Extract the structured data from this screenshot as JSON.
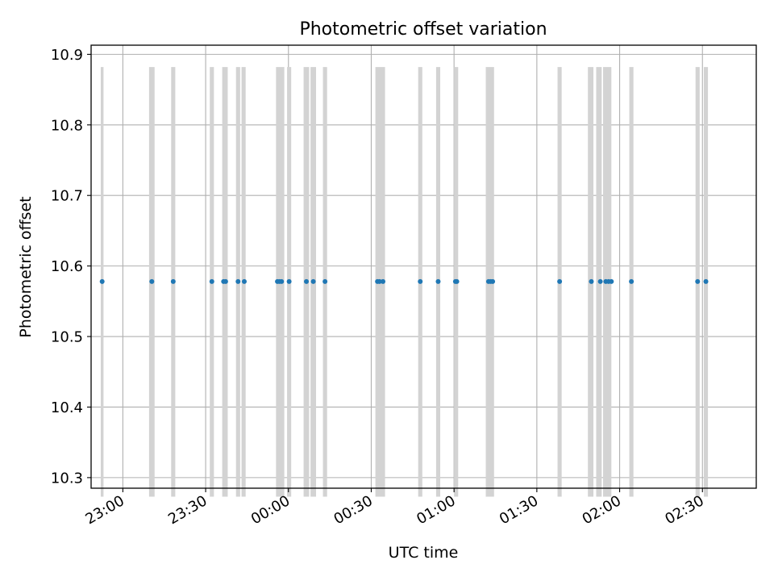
{
  "chart_data": {
    "type": "scatter",
    "title": "Photometric offset variation",
    "xlabel": "UTC time",
    "ylabel": "Photometric offset",
    "ylim": [
      10.285,
      10.913
    ],
    "y_ticks": [
      10.3,
      10.4,
      10.5,
      10.6,
      10.7,
      10.8,
      10.9
    ],
    "xlim": [
      "2023-01-01T22:48:30",
      "2023-01-02T02:49:30"
    ],
    "x_ticks": [
      {
        "t": "2023-01-01T23:00:00",
        "label": "23:00"
      },
      {
        "t": "2023-01-01T23:30:00",
        "label": "23:30"
      },
      {
        "t": "2023-01-02T00:00:00",
        "label": "00:00"
      },
      {
        "t": "2023-01-02T00:30:00",
        "label": "00:30"
      },
      {
        "t": "2023-01-02T01:00:00",
        "label": "01:00"
      },
      {
        "t": "2023-01-02T01:30:00",
        "label": "01:30"
      },
      {
        "t": "2023-01-02T02:00:00",
        "label": "02:00"
      },
      {
        "t": "2023-01-02T02:30:00",
        "label": "02:30"
      }
    ],
    "grid": true,
    "point_color": "#1f77b4",
    "band_color": "#d3d3d3",
    "band_range": [
      10.273,
      10.882
    ],
    "bands": [
      {
        "start": "2023-01-01T22:52:00",
        "end": "2023-01-01T22:53:00"
      },
      {
        "start": "2023-01-01T23:09:30",
        "end": "2023-01-01T23:11:30"
      },
      {
        "start": "2023-01-01T23:17:30",
        "end": "2023-01-01T23:19:00"
      },
      {
        "start": "2023-01-01T23:31:30",
        "end": "2023-01-01T23:33:00"
      },
      {
        "start": "2023-01-01T23:36:00",
        "end": "2023-01-01T23:38:00"
      },
      {
        "start": "2023-01-01T23:41:00",
        "end": "2023-01-01T23:42:30"
      },
      {
        "start": "2023-01-01T23:43:00",
        "end": "2023-01-01T23:44:30"
      },
      {
        "start": "2023-01-01T23:55:30",
        "end": "2023-01-01T23:58:30"
      },
      {
        "start": "2023-01-01T23:59:30",
        "end": "2023-01-02T00:01:00"
      },
      {
        "start": "2023-01-02T00:05:30",
        "end": "2023-01-02T00:07:30"
      },
      {
        "start": "2023-01-02T00:08:00",
        "end": "2023-01-02T00:10:00"
      },
      {
        "start": "2023-01-02T00:12:30",
        "end": "2023-01-02T00:14:00"
      },
      {
        "start": "2023-01-02T00:31:30",
        "end": "2023-01-02T00:35:00"
      },
      {
        "start": "2023-01-02T00:47:00",
        "end": "2023-01-02T00:48:30"
      },
      {
        "start": "2023-01-02T00:53:30",
        "end": "2023-01-02T00:55:00"
      },
      {
        "start": "2023-01-02T01:00:00",
        "end": "2023-01-02T01:01:30"
      },
      {
        "start": "2023-01-02T01:11:30",
        "end": "2023-01-02T01:14:30"
      },
      {
        "start": "2023-01-02T01:37:30",
        "end": "2023-01-02T01:39:00"
      },
      {
        "start": "2023-01-02T01:48:30",
        "end": "2023-01-02T01:50:30"
      },
      {
        "start": "2023-01-02T01:51:30",
        "end": "2023-01-02T01:53:30"
      },
      {
        "start": "2023-01-02T01:54:00",
        "end": "2023-01-02T01:57:00"
      },
      {
        "start": "2023-01-02T02:03:30",
        "end": "2023-01-02T02:05:00"
      },
      {
        "start": "2023-01-02T02:27:30",
        "end": "2023-01-02T02:29:00"
      },
      {
        "start": "2023-01-02T02:30:30",
        "end": "2023-01-02T02:32:00"
      }
    ],
    "points": [
      {
        "t": "2023-01-01T22:52:30",
        "y": 10.578
      },
      {
        "t": "2023-01-01T23:10:30",
        "y": 10.578
      },
      {
        "t": "2023-01-01T23:18:15",
        "y": 10.578
      },
      {
        "t": "2023-01-01T23:32:15",
        "y": 10.578
      },
      {
        "t": "2023-01-01T23:36:30",
        "y": 10.578
      },
      {
        "t": "2023-01-01T23:37:15",
        "y": 10.578
      },
      {
        "t": "2023-01-01T23:41:45",
        "y": 10.578
      },
      {
        "t": "2023-01-01T23:44:00",
        "y": 10.578
      },
      {
        "t": "2023-01-01T23:56:00",
        "y": 10.578
      },
      {
        "t": "2023-01-01T23:56:45",
        "y": 10.578
      },
      {
        "t": "2023-01-01T23:57:30",
        "y": 10.578
      },
      {
        "t": "2023-01-02T00:00:15",
        "y": 10.578
      },
      {
        "t": "2023-01-02T00:06:30",
        "y": 10.578
      },
      {
        "t": "2023-01-02T00:09:00",
        "y": 10.578
      },
      {
        "t": "2023-01-02T00:13:15",
        "y": 10.578
      },
      {
        "t": "2023-01-02T00:32:15",
        "y": 10.578
      },
      {
        "t": "2023-01-02T00:33:00",
        "y": 10.578
      },
      {
        "t": "2023-01-02T00:34:15",
        "y": 10.578
      },
      {
        "t": "2023-01-02T00:47:45",
        "y": 10.578
      },
      {
        "t": "2023-01-02T00:54:15",
        "y": 10.578
      },
      {
        "t": "2023-01-02T01:00:30",
        "y": 10.578
      },
      {
        "t": "2023-01-02T01:01:00",
        "y": 10.578
      },
      {
        "t": "2023-01-02T01:12:30",
        "y": 10.578
      },
      {
        "t": "2023-01-02T01:13:15",
        "y": 10.578
      },
      {
        "t": "2023-01-02T01:14:00",
        "y": 10.578
      },
      {
        "t": "2023-01-02T01:38:15",
        "y": 10.578
      },
      {
        "t": "2023-01-02T01:49:45",
        "y": 10.578
      },
      {
        "t": "2023-01-02T01:53:00",
        "y": 10.578
      },
      {
        "t": "2023-01-02T01:55:00",
        "y": 10.578
      },
      {
        "t": "2023-01-02T01:56:00",
        "y": 10.578
      },
      {
        "t": "2023-01-02T01:57:00",
        "y": 10.578
      },
      {
        "t": "2023-01-02T02:04:15",
        "y": 10.578
      },
      {
        "t": "2023-01-02T02:28:15",
        "y": 10.578
      },
      {
        "t": "2023-01-02T02:31:15",
        "y": 10.578
      }
    ]
  }
}
